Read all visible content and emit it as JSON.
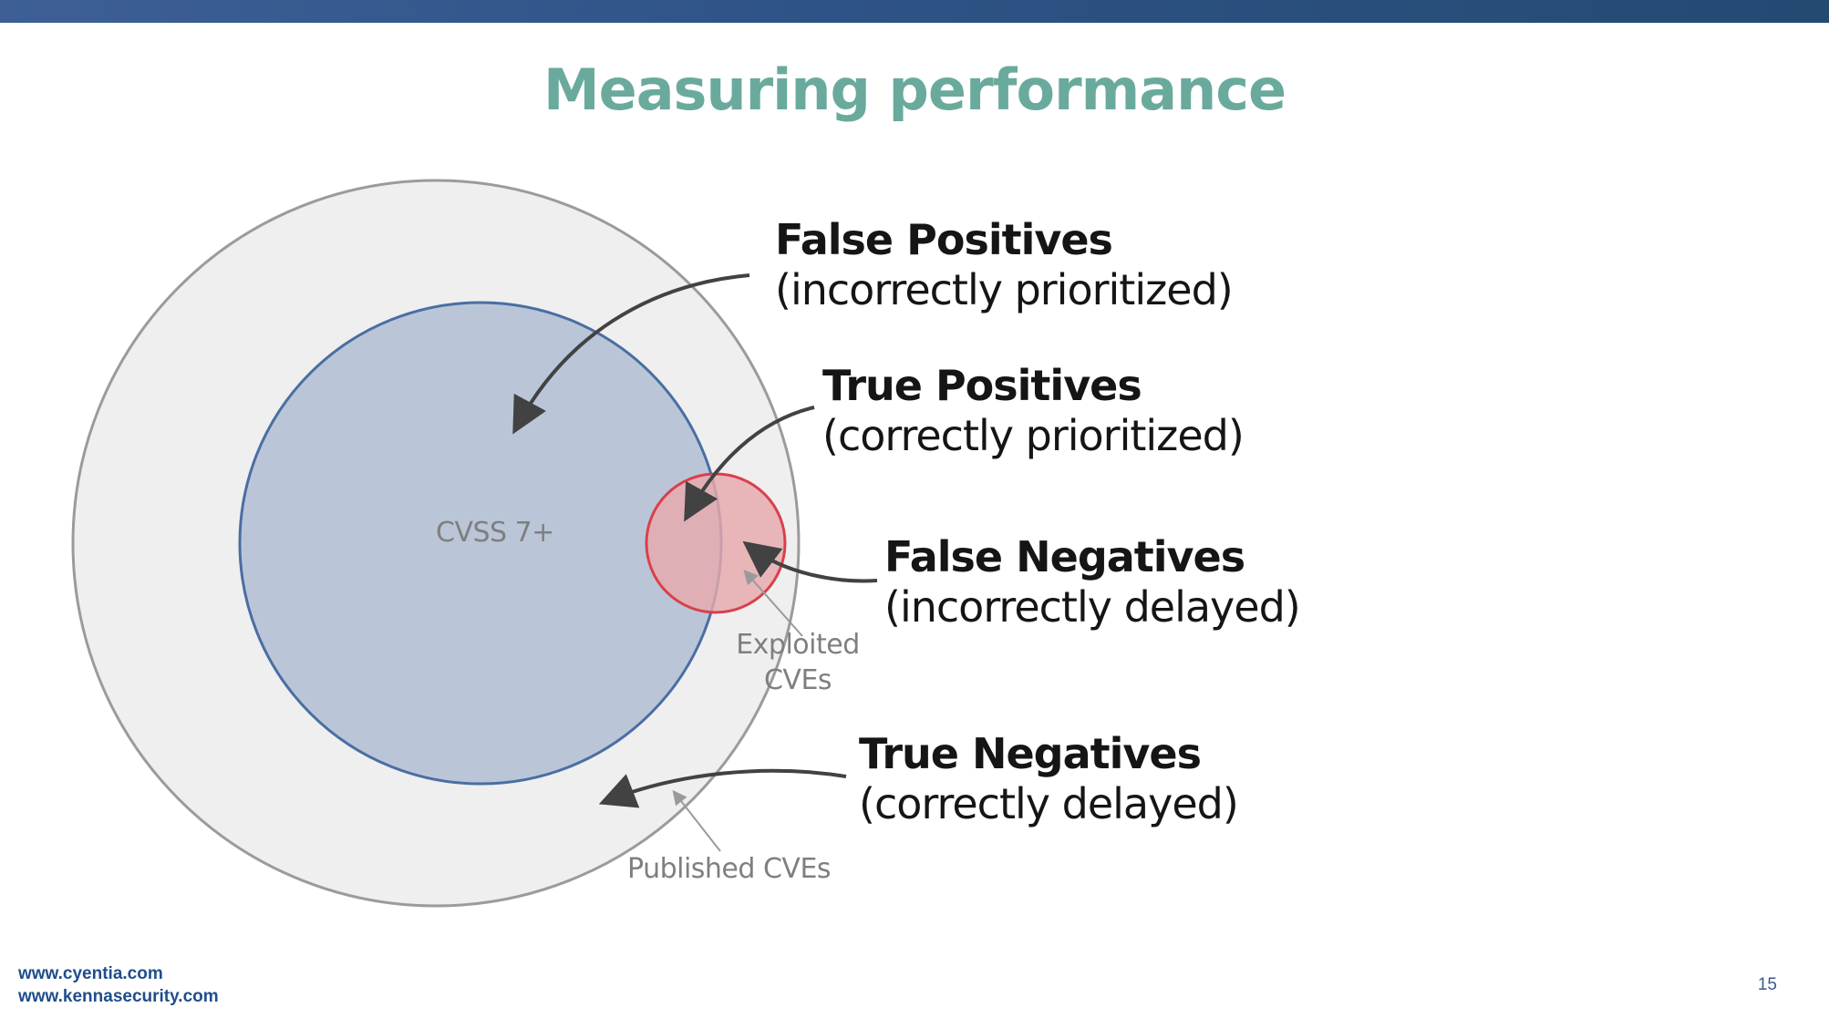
{
  "slide": {
    "title": "Measuring performance",
    "page_number": "15"
  },
  "footer": {
    "links": [
      "www.cyentia.com",
      "www.kennasecurity.com"
    ]
  },
  "diagram": {
    "circles": {
      "published": {
        "label": "Published CVEs",
        "fill": "#efefef",
        "stroke": "#9b9b9b"
      },
      "cvss": {
        "label": "CVSS 7+",
        "fill": "#bac6d8",
        "stroke": "#4a6ea3"
      },
      "exploited": {
        "label": "Exploited CVEs",
        "label_line1": "Exploited",
        "label_line2": "CVEs",
        "fill": "#e7a9ad",
        "stroke": "#d9404b"
      }
    },
    "callouts": {
      "false_positives": {
        "heading": "False Positives",
        "sub": "(incorrectly prioritized)"
      },
      "true_positives": {
        "heading": "True Positives",
        "sub": "(correctly prioritized)"
      },
      "false_negatives": {
        "heading": "False Negatives",
        "sub": "(incorrectly delayed)"
      },
      "true_negatives": {
        "heading": "True Negatives",
        "sub": "(correctly delayed)"
      }
    },
    "colors": {
      "arrow": "#424242",
      "pointer": "#9a9a9a"
    }
  }
}
